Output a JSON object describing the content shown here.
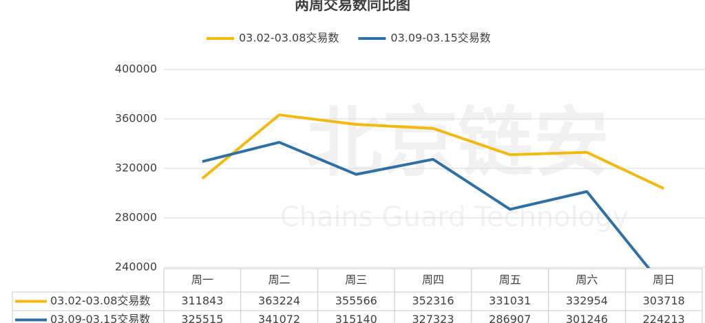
{
  "chart_data": {
    "type": "line",
    "title": "两周交易数同比图",
    "watermark": [
      "北京链安",
      "Chains Guard Technology"
    ],
    "categories": [
      "周一",
      "周二",
      "周三",
      "周四",
      "周五",
      "周六",
      "周日"
    ],
    "series": [
      {
        "name": "03.02-03.08交易数",
        "color": "#f2b90f",
        "values": [
          311843,
          363224,
          355566,
          352316,
          331031,
          332954,
          303718
        ]
      },
      {
        "name": "03.09-03.15交易数",
        "color": "#2e6fa4",
        "values": [
          325515,
          341072,
          315140,
          327323,
          286907,
          301246,
          224213
        ]
      }
    ],
    "ylim": [
      240000,
      400000
    ],
    "yticks": [
      240000,
      280000,
      320000,
      360000,
      400000
    ],
    "grid": true,
    "legend": "top",
    "data_table": true
  }
}
